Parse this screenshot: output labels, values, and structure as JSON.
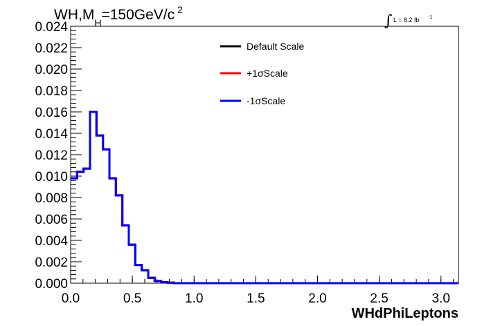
{
  "chart_data": {
    "type": "line",
    "title": {
      "prefix": "WH,M",
      "subscript": "H",
      "main": "=150GeV/c",
      "superscript": "2"
    },
    "luminosity": {
      "text": "L = 8.2 fb",
      "superscript": "-1"
    },
    "xlabel": "WHdPhiLeptons",
    "ylabel": "",
    "xlim": [
      0,
      3.1416
    ],
    "ylim": [
      0,
      0.024
    ],
    "xticks": [
      "0.0",
      "0.5",
      "1.0",
      "1.5",
      "2.0",
      "2.5",
      "3.0"
    ],
    "xtick_values": [
      0,
      0.5,
      1.0,
      1.5,
      2.0,
      2.5,
      3.0
    ],
    "yticks": [
      "0.000",
      "0.002",
      "0.004",
      "0.006",
      "0.008",
      "0.010",
      "0.012",
      "0.014",
      "0.016",
      "0.018",
      "0.020",
      "0.022",
      "0.024"
    ],
    "ytick_values": [
      0,
      0.002,
      0.004,
      0.006,
      0.008,
      0.01,
      0.012,
      0.014,
      0.016,
      0.018,
      0.02,
      0.022,
      0.024
    ],
    "bin_edges": [
      0.0,
      0.0524,
      0.1047,
      0.1571,
      0.2094,
      0.2618,
      0.3142,
      0.3665,
      0.4189,
      0.4712,
      0.5236,
      0.576,
      0.6283,
      0.6807,
      0.733,
      0.7854,
      0.8378,
      0.8901,
      0.9425,
      0.9948,
      3.1416
    ],
    "legend_position": "top-right",
    "series": [
      {
        "name": "Default Scale",
        "color": "#000000",
        "values": [
          0.0098,
          0.0104,
          0.0107,
          0.016,
          0.0138,
          0.0125,
          0.0098,
          0.0082,
          0.0054,
          0.0036,
          0.0017,
          0.0012,
          0.0005,
          0.0002,
          0.0001,
          5e-05,
          0.0,
          0.0,
          0.0,
          0.0
        ]
      },
      {
        "name": "+1σScale",
        "color": "#ff0000",
        "values": [
          0.0098,
          0.0104,
          0.0107,
          0.016,
          0.0138,
          0.0125,
          0.0098,
          0.0082,
          0.0054,
          0.0036,
          0.0017,
          0.0012,
          0.0005,
          0.0002,
          0.0001,
          5e-05,
          0.0,
          0.0,
          0.0,
          0.0
        ]
      },
      {
        "name": "-1σScale",
        "color": "#0000ff",
        "values": [
          0.0098,
          0.0104,
          0.0107,
          0.016,
          0.0138,
          0.0125,
          0.0098,
          0.0082,
          0.0054,
          0.0036,
          0.0017,
          0.0012,
          0.0005,
          0.0002,
          0.0001,
          5e-05,
          0.0,
          0.0,
          0.0,
          0.0
        ]
      }
    ]
  }
}
